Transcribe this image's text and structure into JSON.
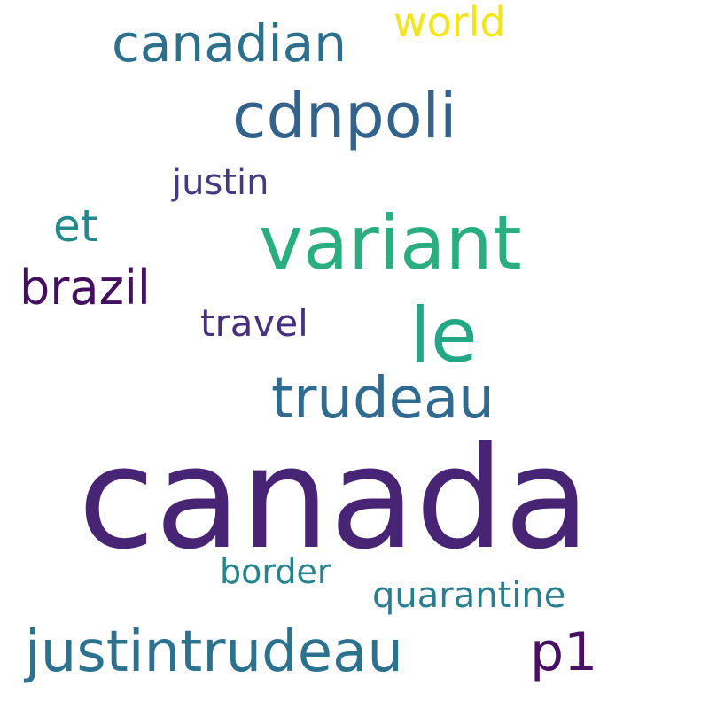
{
  "words": [
    {
      "key": "canada",
      "text": "canada",
      "color": "#482475"
    },
    {
      "key": "variant",
      "text": "variant",
      "color": "#2aae80"
    },
    {
      "key": "cdnpoli",
      "text": "cdnpoli",
      "color": "#33638d"
    },
    {
      "key": "le",
      "text": "le",
      "color": "#22a884"
    },
    {
      "key": "trudeau",
      "text": "trudeau",
      "color": "#306a8e"
    },
    {
      "key": "justintrudeau",
      "text": "justintrudeau",
      "color": "#2c728e"
    },
    {
      "key": "canadian",
      "text": "canadian",
      "color": "#2d708e"
    },
    {
      "key": "brazil",
      "text": "brazil",
      "color": "#440f5f"
    },
    {
      "key": "p1",
      "text": "p1",
      "color": "#470e61"
    },
    {
      "key": "et",
      "text": "et",
      "color": "#23898e"
    },
    {
      "key": "world",
      "text": "world",
      "color": "#f1e51d"
    },
    {
      "key": "quarantine",
      "text": "quarantine",
      "color": "#287d8e"
    },
    {
      "key": "border",
      "text": "border",
      "color": "#25848e"
    },
    {
      "key": "travel",
      "text": "travel",
      "color": "#46307e"
    },
    {
      "key": "justin",
      "text": "justin",
      "color": "#443983"
    }
  ]
}
